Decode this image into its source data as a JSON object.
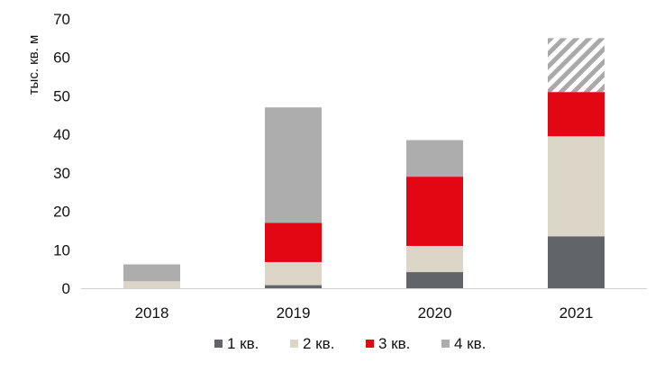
{
  "chart_data": {
    "type": "bar",
    "stacked": true,
    "categories": [
      "2018",
      "2019",
      "2020",
      "2021"
    ],
    "series": [
      {
        "name": "1 кв.",
        "color": "#616468",
        "values": [
          0,
          0.8,
          4.2,
          13.5
        ]
      },
      {
        "name": "2 кв.",
        "color": "#dcd6c8",
        "values": [
          1.8,
          6.0,
          6.8,
          26.0
        ]
      },
      {
        "name": "3 кв.",
        "color": "#e30613",
        "values": [
          0,
          10.2,
          18.0,
          11.5
        ]
      },
      {
        "name": "4 кв.",
        "color": "#adadad",
        "values": [
          4.4,
          30.0,
          9.5,
          0
        ]
      }
    ],
    "forecast": {
      "category": "2021",
      "from": 51.0,
      "to": 65.0,
      "pattern": "hatched",
      "color": "#a9a9a9"
    },
    "title": "",
    "xlabel": "",
    "ylabel": "тыс. кв. м",
    "ylim": [
      0,
      70
    ],
    "yticks": [
      0,
      10,
      20,
      30,
      40,
      50,
      60,
      70
    ],
    "grid": false,
    "legend_position": "bottom"
  }
}
